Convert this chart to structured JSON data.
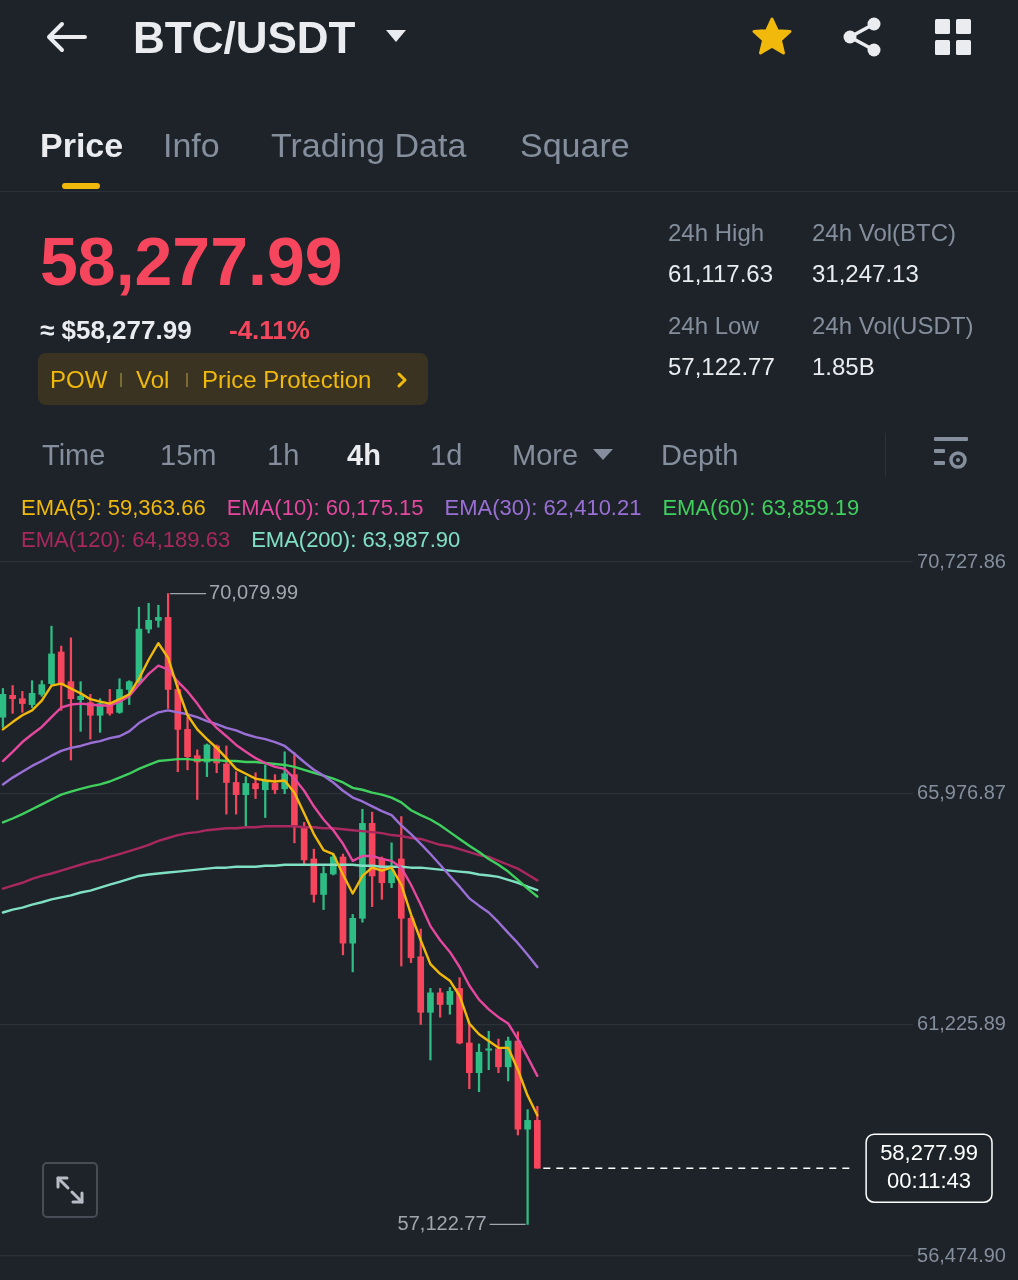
{
  "chart_data": {
    "type": "candlestick",
    "title": "BTC/USDT",
    "annotations": [
      "Price",
      "Info",
      "Trading Data",
      "Square",
      "58,277.99",
      "≈ $58,277.99",
      "-4.11%",
      "POW",
      "Vol",
      "Price Protection",
      "24h High",
      "61,117.63",
      "24h Low",
      "57,122.77",
      "24h Vol(BTC)",
      "31,247.13",
      "24h Vol(USDT)",
      "1.85B",
      "Time",
      "15m",
      "1h",
      "4h",
      "1d",
      "More",
      "Depth",
      "70,079.99",
      "57,122.77"
    ],
    "categories": [
      null,
      null,
      null,
      null,
      null,
      null,
      null,
      null,
      null,
      null,
      null,
      null,
      null,
      null,
      null,
      null,
      null,
      null,
      null,
      null,
      null,
      null,
      null,
      null,
      null,
      null,
      null,
      null,
      null,
      null,
      null,
      null,
      null,
      null,
      null,
      null,
      null,
      null,
      null,
      null,
      null,
      null,
      null,
      null,
      null,
      null,
      null,
      null,
      null,
      null,
      null,
      null,
      null,
      null,
      null,
      null
    ],
    "ohlc": [
      [
        67540,
        68130,
        67330,
        68010
      ],
      [
        67990,
        68190,
        67620,
        67920
      ],
      [
        67920,
        68070,
        67640,
        67820
      ],
      [
        67800,
        68290,
        67740,
        68030
      ],
      [
        68010,
        68290,
        67970,
        68210
      ],
      [
        68230,
        69410,
        68210,
        68840
      ],
      [
        68880,
        69000,
        67680,
        68230
      ],
      [
        68270,
        69170,
        66660,
        67920
      ],
      [
        67900,
        68270,
        67250,
        67970
      ],
      [
        67840,
        68010,
        67090,
        67580
      ],
      [
        67580,
        67920,
        67230,
        67820
      ],
      [
        67820,
        68110,
        67580,
        67620
      ],
      [
        67640,
        68330,
        67620,
        68110
      ],
      [
        68110,
        68290,
        67800,
        68270
      ],
      [
        68270,
        69800,
        68210,
        69350
      ],
      [
        69350,
        69880,
        69270,
        69530
      ],
      [
        69530,
        69840,
        69390,
        69590
      ],
      [
        69590,
        70079.99,
        67720,
        68110
      ],
      [
        68110,
        68210,
        66420,
        67290
      ],
      [
        67290,
        67540,
        66460,
        66730
      ],
      [
        66750,
        66870,
        65850,
        66620
      ],
      [
        66620,
        66990,
        66320,
        66970
      ],
      [
        66950,
        66970,
        66400,
        66600
      ],
      [
        66580,
        66950,
        65550,
        66200
      ],
      [
        66200,
        66420,
        65550,
        65950
      ],
      [
        65950,
        66320,
        65300,
        66180
      ],
      [
        66180,
        66400,
        65870,
        66070
      ],
      [
        66050,
        66560,
        65480,
        66240
      ],
      [
        66180,
        66360,
        65970,
        66050
      ],
      [
        66070,
        66830,
        65970,
        66380
      ],
      [
        66360,
        66810,
        64960,
        65320
      ],
      [
        65280,
        65380,
        64530,
        64610
      ],
      [
        64630,
        64830,
        63740,
        63900
      ],
      [
        63900,
        64470,
        63590,
        64330
      ],
      [
        64320,
        64730,
        64300,
        64670
      ],
      [
        64670,
        64730,
        62660,
        62900
      ],
      [
        62900,
        63490,
        62310,
        63410
      ],
      [
        63410,
        65650,
        63330,
        65360
      ],
      [
        65360,
        65590,
        63650,
        64280
      ],
      [
        64630,
        64670,
        63800,
        64140
      ],
      [
        64140,
        64960,
        64040,
        64390
      ],
      [
        64630,
        65500,
        62430,
        63410
      ],
      [
        63410,
        63450,
        62500,
        62600
      ],
      [
        62620,
        63190,
        61230,
        61480
      ],
      [
        61480,
        61970,
        60500,
        61880
      ],
      [
        61880,
        61970,
        61380,
        61640
      ],
      [
        61640,
        61990,
        61440,
        61910
      ],
      [
        61970,
        62190,
        60830,
        60850
      ],
      [
        60850,
        61230,
        59910,
        60240
      ],
      [
        60240,
        60830,
        59850,
        60660
      ],
      [
        60700,
        61090,
        60300,
        60730
      ],
      [
        60730,
        60930,
        60240,
        60360
      ],
      [
        60360,
        60970,
        60070,
        60890
      ],
      [
        60890,
        61080,
        58960,
        59080
      ],
      [
        59080,
        59480,
        57122.77,
        59260
      ],
      [
        59260,
        59550,
        58277.99,
        58277.99
      ]
    ],
    "colors": [
      "#2ebd85",
      "#f6465d",
      "#f6465d",
      "#2ebd85",
      "#2ebd85",
      "#2ebd85",
      "#f6465d",
      "#f6465d",
      "#2ebd85",
      "#f6465d",
      "#2ebd85",
      "#f6465d",
      "#2ebd85",
      "#2ebd85",
      "#2ebd85",
      "#2ebd85",
      "#2ebd85",
      "#f6465d",
      "#f6465d",
      "#f6465d",
      "#f6465d",
      "#2ebd85",
      "#f6465d",
      "#f6465d",
      "#f6465d",
      "#2ebd85",
      "#f6465d",
      "#2ebd85",
      "#f6465d",
      "#2ebd85",
      "#f6465d",
      "#f6465d",
      "#f6465d",
      "#2ebd85",
      "#2ebd85",
      "#f6465d",
      "#2ebd85",
      "#2ebd85",
      "#f6465d",
      "#f6465d",
      "#2ebd85",
      "#f6465d",
      "#f6465d",
      "#f6465d",
      "#2ebd85",
      "#f6465d",
      "#2ebd85",
      "#f6465d",
      "#f6465d",
      "#2ebd85",
      "#2ebd85",
      "#f6465d",
      "#2ebd85",
      "#f6465d",
      "#2ebd85",
      "#f6465d"
    ],
    "series": [
      {
        "type": "line",
        "name": "EMA(5): 59,363.66",
        "color": "#f0b90b",
        "values": [
          67290,
          67440,
          67580,
          67680,
          67880,
          68190,
          68230,
          68130,
          68030,
          67910,
          67860,
          67820,
          67910,
          68010,
          68330,
          68720,
          69060,
          68760,
          68130,
          67580,
          67290,
          67090,
          66910,
          66700,
          66480,
          66380,
          66280,
          66240,
          66220,
          66240,
          65990,
          65570,
          65140,
          64810,
          64730,
          64310,
          63920,
          64280,
          64450,
          64390,
          64450,
          64100,
          63490,
          62960,
          62470,
          62270,
          62130,
          61820,
          61250,
          61030,
          60890,
          60750,
          60750,
          60300,
          59770,
          59363.66
        ]
      },
      {
        "type": "line",
        "name": "EMA(10): 60,175.15",
        "color": "#e5489e",
        "values": [
          66640,
          66830,
          67030,
          67190,
          67340,
          67540,
          67740,
          67800,
          67820,
          67800,
          67780,
          67780,
          67860,
          67970,
          68210,
          68430,
          68600,
          68520,
          68270,
          68070,
          67820,
          67540,
          67320,
          67150,
          66970,
          66830,
          66700,
          66600,
          66520,
          66480,
          66280,
          66030,
          65710,
          65440,
          65220,
          64940,
          64590,
          64690,
          64690,
          64630,
          64590,
          64450,
          64100,
          63690,
          63250,
          62960,
          62720,
          62410,
          62030,
          61740,
          61540,
          61380,
          61250,
          60930,
          60560,
          60175.15
        ]
      },
      {
        "type": "line",
        "name": "EMA(30): 62,410.21",
        "color": "#9a6fd6",
        "values": [
          66160,
          66300,
          66420,
          66540,
          66640,
          66750,
          66850,
          66910,
          66950,
          67010,
          67050,
          67110,
          67150,
          67250,
          67420,
          67540,
          67640,
          67680,
          67640,
          67600,
          67540,
          67460,
          67400,
          67320,
          67270,
          67190,
          67130,
          67090,
          67030,
          66950,
          66790,
          66620,
          66460,
          66340,
          66200,
          66030,
          65890,
          65810,
          65710,
          65610,
          65530,
          65320,
          65140,
          64940,
          64730,
          64510,
          64280,
          64060,
          63820,
          63670,
          63530,
          63330,
          63110,
          62900,
          62660,
          62410.21
        ]
      },
      {
        "type": "line",
        "name": "EMA(60): 63,859.19",
        "color": "#3fd05e",
        "values": [
          65380,
          65460,
          65550,
          65650,
          65750,
          65850,
          65950,
          66010,
          66070,
          66120,
          66160,
          66220,
          66300,
          66380,
          66480,
          66560,
          66640,
          66660,
          66680,
          66680,
          66660,
          66660,
          66660,
          66640,
          66640,
          66620,
          66620,
          66600,
          66580,
          66560,
          66520,
          66460,
          66400,
          66340,
          66280,
          66200,
          66090,
          66050,
          65990,
          65950,
          65890,
          65790,
          65630,
          65530,
          65440,
          65320,
          65180,
          65040,
          64900,
          64770,
          64630,
          64510,
          64370,
          64200,
          64020,
          63859.19
        ]
      },
      {
        "type": "line",
        "name": "EMA(120): 64,189.63",
        "color": "#a8285f",
        "values": [
          64020,
          64080,
          64140,
          64220,
          64280,
          64330,
          64390,
          64450,
          64510,
          64570,
          64610,
          64670,
          64730,
          64790,
          64850,
          64920,
          65000,
          65060,
          65120,
          65160,
          65180,
          65220,
          65240,
          65260,
          65260,
          65280,
          65280,
          65300,
          65300,
          65300,
          65300,
          65280,
          65280,
          65260,
          65260,
          65240,
          65220,
          65200,
          65180,
          65160,
          65120,
          65100,
          65060,
          65040,
          64980,
          64920,
          64890,
          64830,
          64770,
          64710,
          64670,
          64590,
          64510,
          64430,
          64310,
          64189.63
        ]
      },
      {
        "type": "line",
        "name": "EMA(200): 63,987.90",
        "color": "#80e0c4",
        "values": [
          63530,
          63590,
          63630,
          63690,
          63740,
          63800,
          63840,
          63880,
          63940,
          63980,
          64040,
          64100,
          64160,
          64220,
          64280,
          64310,
          64330,
          64350,
          64370,
          64390,
          64410,
          64430,
          64450,
          64450,
          64470,
          64470,
          64470,
          64490,
          64490,
          64510,
          64510,
          64510,
          64510,
          64510,
          64510,
          64510,
          64510,
          64490,
          64490,
          64470,
          64470,
          64470,
          64450,
          64450,
          64430,
          64410,
          64390,
          64370,
          64350,
          64310,
          64290,
          64260,
          64200,
          64140,
          64060,
          63987.9
        ]
      }
    ],
    "ylim": [
      56474.9,
      70727.86
    ],
    "yticks": [
      {
        "value": 56474.9,
        "label": "56,474.90"
      },
      {
        "value": 61225.89,
        "label": "61,225.89"
      },
      {
        "value": 65976.87,
        "label": "65,976.87"
      },
      {
        "value": 70727.86,
        "label": "70,727.86"
      }
    ],
    "ref_lines": [
      {
        "axis": "y",
        "value": 58277.99,
        "label": "58,277.99\n00:11:43",
        "color": "#ffffff",
        "line_style": "dashed"
      }
    ],
    "grid": "y",
    "legend": "top",
    "tick_labels": "y",
    "marker": "none"
  }
}
